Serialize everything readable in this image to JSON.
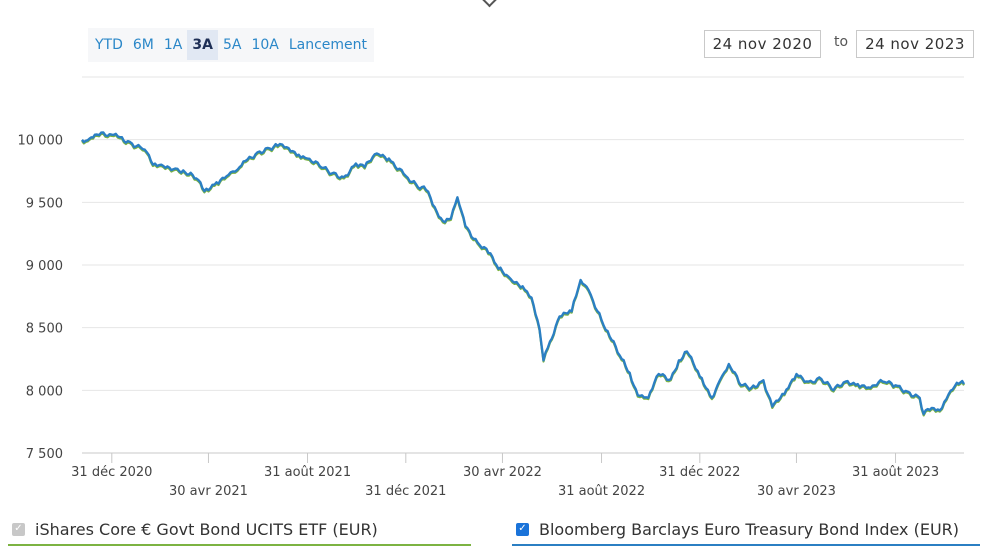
{
  "range_selector": {
    "buttons": [
      {
        "label": "YTD",
        "active": false
      },
      {
        "label": "6M",
        "active": false
      },
      {
        "label": "1A",
        "active": false
      },
      {
        "label": "3A",
        "active": true
      },
      {
        "label": "5A",
        "active": false
      },
      {
        "label": "10A",
        "active": false
      },
      {
        "label": "Lancement",
        "active": false
      }
    ]
  },
  "date_range": {
    "from": "24 nov 2020",
    "separator": "to",
    "to": "24 nov 2023"
  },
  "legend": {
    "items": [
      {
        "label": "iShares Core € Govt Bond UCITS ETF (EUR)",
        "checked": false,
        "color": "#7cb342"
      },
      {
        "label": "Bloomberg Barclays Euro Treasury Bond Index (EUR)",
        "checked": true,
        "color": "#2b7fc3"
      }
    ]
  },
  "chart_data": {
    "type": "line",
    "title": "",
    "xlabel": "",
    "ylabel": "",
    "ylim": [
      7500,
      10500
    ],
    "y_ticks": [
      {
        "value": 7500,
        "label": "7 500"
      },
      {
        "value": 8000,
        "label": "8 000"
      },
      {
        "value": 8500,
        "label": "8 500"
      },
      {
        "value": 9000,
        "label": "9 000"
      },
      {
        "value": 9500,
        "label": "9 500"
      },
      {
        "value": 10000,
        "label": "10 000"
      }
    ],
    "x_range": [
      "2020-11-24",
      "2023-11-24"
    ],
    "x_ticks": [
      {
        "date": "2020-12-31",
        "label": "31 déc 2020"
      },
      {
        "date": "2021-04-30",
        "label": "30 avr 2021"
      },
      {
        "date": "2021-08-31",
        "label": "31 août 2021"
      },
      {
        "date": "2021-12-31",
        "label": "31 déc 2021"
      },
      {
        "date": "2022-04-30",
        "label": "30 avr 2022"
      },
      {
        "date": "2022-08-31",
        "label": "31 août 2022"
      },
      {
        "date": "2022-12-31",
        "label": "31 déc 2022"
      },
      {
        "date": "2023-04-30",
        "label": "30 avr 2023"
      },
      {
        "date": "2023-08-31",
        "label": "31 août 2023"
      }
    ],
    "grid": true,
    "legend_position": "bottom",
    "series": [
      {
        "name": "iShares Core € Govt Bond UCITS ETF (EUR)",
        "color": "#7cb342",
        "points": [
          [
            "2020-11-24",
            9990
          ],
          [
            "2020-12-01",
            9985
          ],
          [
            "2020-12-10",
            10030
          ],
          [
            "2020-12-31",
            10030
          ],
          [
            "2021-01-10",
            10010
          ],
          [
            "2021-01-25",
            9960
          ],
          [
            "2021-02-10",
            9910
          ],
          [
            "2021-02-20",
            9790
          ],
          [
            "2021-03-05",
            9780
          ],
          [
            "2021-03-20",
            9760
          ],
          [
            "2021-04-01",
            9730
          ],
          [
            "2021-04-15",
            9680
          ],
          [
            "2021-04-25",
            9580
          ],
          [
            "2021-05-10",
            9650
          ],
          [
            "2021-05-25",
            9710
          ],
          [
            "2021-06-05",
            9750
          ],
          [
            "2021-06-15",
            9820
          ],
          [
            "2021-06-30",
            9890
          ],
          [
            "2021-07-15",
            9920
          ],
          [
            "2021-07-25",
            9940
          ],
          [
            "2021-08-05",
            9930
          ],
          [
            "2021-08-20",
            9870
          ],
          [
            "2021-08-31",
            9840
          ],
          [
            "2021-09-15",
            9780
          ],
          [
            "2021-09-30",
            9720
          ],
          [
            "2021-10-15",
            9690
          ],
          [
            "2021-10-30",
            9800
          ],
          [
            "2021-11-10",
            9770
          ],
          [
            "2021-11-25",
            9880
          ],
          [
            "2021-12-10",
            9840
          ],
          [
            "2021-12-31",
            9700
          ],
          [
            "2022-01-15",
            9610
          ],
          [
            "2022-01-25",
            9590
          ],
          [
            "2022-02-05",
            9450
          ],
          [
            "2022-02-15",
            9340
          ],
          [
            "2022-02-25",
            9360
          ],
          [
            "2022-03-05",
            9530
          ],
          [
            "2022-03-15",
            9300
          ],
          [
            "2022-03-30",
            9170
          ],
          [
            "2022-04-10",
            9120
          ],
          [
            "2022-04-25",
            8960
          ],
          [
            "2022-05-10",
            8880
          ],
          [
            "2022-05-25",
            8820
          ],
          [
            "2022-06-05",
            8730
          ],
          [
            "2022-06-15",
            8480
          ],
          [
            "2022-06-20",
            8230
          ],
          [
            "2022-06-28",
            8380
          ],
          [
            "2022-07-10",
            8580
          ],
          [
            "2022-07-25",
            8620
          ],
          [
            "2022-08-05",
            8870
          ],
          [
            "2022-08-15",
            8790
          ],
          [
            "2022-08-31",
            8550
          ],
          [
            "2022-09-10",
            8420
          ],
          [
            "2022-09-25",
            8240
          ],
          [
            "2022-10-05",
            8130
          ],
          [
            "2022-10-15",
            7950
          ],
          [
            "2022-10-28",
            7930
          ],
          [
            "2022-11-10",
            8120
          ],
          [
            "2022-11-25",
            8080
          ],
          [
            "2022-12-05",
            8230
          ],
          [
            "2022-12-15",
            8300
          ],
          [
            "2022-12-31",
            8100
          ],
          [
            "2023-01-15",
            7930
          ],
          [
            "2023-01-25",
            8070
          ],
          [
            "2023-02-05",
            8200
          ],
          [
            "2023-02-20",
            8030
          ],
          [
            "2023-03-05",
            8010
          ],
          [
            "2023-03-20",
            8070
          ],
          [
            "2023-03-31",
            7860
          ],
          [
            "2023-04-15",
            7960
          ],
          [
            "2023-04-30",
            8120
          ],
          [
            "2023-05-15",
            8060
          ],
          [
            "2023-05-31",
            8080
          ],
          [
            "2023-06-15",
            7990
          ],
          [
            "2023-06-30",
            8060
          ],
          [
            "2023-07-15",
            8040
          ],
          [
            "2023-07-31",
            8010
          ],
          [
            "2023-08-15",
            8060
          ],
          [
            "2023-08-31",
            8030
          ],
          [
            "2023-09-15",
            7980
          ],
          [
            "2023-09-30",
            7930
          ],
          [
            "2023-10-05",
            7800
          ],
          [
            "2023-10-15",
            7850
          ],
          [
            "2023-10-25",
            7830
          ],
          [
            "2023-11-05",
            7960
          ],
          [
            "2023-11-15",
            8050
          ],
          [
            "2023-11-24",
            8040
          ]
        ]
      },
      {
        "name": "Bloomberg Barclays Euro Treasury Bond Index (EUR)",
        "color": "#2b7fc3",
        "points": [
          [
            "2020-11-24",
            10000
          ],
          [
            "2020-12-01",
            9995
          ],
          [
            "2020-12-10",
            10040
          ],
          [
            "2020-12-31",
            10040
          ],
          [
            "2021-01-10",
            10020
          ],
          [
            "2021-01-25",
            9970
          ],
          [
            "2021-02-10",
            9920
          ],
          [
            "2021-02-20",
            9800
          ],
          [
            "2021-03-05",
            9790
          ],
          [
            "2021-03-20",
            9770
          ],
          [
            "2021-04-01",
            9740
          ],
          [
            "2021-04-15",
            9690
          ],
          [
            "2021-04-25",
            9590
          ],
          [
            "2021-05-10",
            9660
          ],
          [
            "2021-05-25",
            9720
          ],
          [
            "2021-06-05",
            9760
          ],
          [
            "2021-06-15",
            9830
          ],
          [
            "2021-06-30",
            9900
          ],
          [
            "2021-07-15",
            9930
          ],
          [
            "2021-07-25",
            9950
          ],
          [
            "2021-08-05",
            9940
          ],
          [
            "2021-08-20",
            9880
          ],
          [
            "2021-08-31",
            9850
          ],
          [
            "2021-09-15",
            9790
          ],
          [
            "2021-09-30",
            9730
          ],
          [
            "2021-10-15",
            9700
          ],
          [
            "2021-10-30",
            9810
          ],
          [
            "2021-11-10",
            9780
          ],
          [
            "2021-11-25",
            9890
          ],
          [
            "2021-12-10",
            9850
          ],
          [
            "2021-12-31",
            9710
          ],
          [
            "2022-01-15",
            9620
          ],
          [
            "2022-01-25",
            9600
          ],
          [
            "2022-02-05",
            9460
          ],
          [
            "2022-02-15",
            9350
          ],
          [
            "2022-02-25",
            9370
          ],
          [
            "2022-03-05",
            9540
          ],
          [
            "2022-03-15",
            9310
          ],
          [
            "2022-03-30",
            9180
          ],
          [
            "2022-04-10",
            9130
          ],
          [
            "2022-04-25",
            8970
          ],
          [
            "2022-05-10",
            8890
          ],
          [
            "2022-05-25",
            8830
          ],
          [
            "2022-06-05",
            8740
          ],
          [
            "2022-06-15",
            8490
          ],
          [
            "2022-06-20",
            8240
          ],
          [
            "2022-06-28",
            8390
          ],
          [
            "2022-07-10",
            8590
          ],
          [
            "2022-07-25",
            8630
          ],
          [
            "2022-08-05",
            8880
          ],
          [
            "2022-08-15",
            8800
          ],
          [
            "2022-08-31",
            8560
          ],
          [
            "2022-09-10",
            8430
          ],
          [
            "2022-09-25",
            8250
          ],
          [
            "2022-10-05",
            8140
          ],
          [
            "2022-10-15",
            7960
          ],
          [
            "2022-10-28",
            7940
          ],
          [
            "2022-11-10",
            8130
          ],
          [
            "2022-11-25",
            8090
          ],
          [
            "2022-12-05",
            8240
          ],
          [
            "2022-12-15",
            8310
          ],
          [
            "2022-12-31",
            8110
          ],
          [
            "2023-01-15",
            7940
          ],
          [
            "2023-01-25",
            8080
          ],
          [
            "2023-02-05",
            8210
          ],
          [
            "2023-02-20",
            8040
          ],
          [
            "2023-03-05",
            8020
          ],
          [
            "2023-03-20",
            8080
          ],
          [
            "2023-03-31",
            7870
          ],
          [
            "2023-04-15",
            7970
          ],
          [
            "2023-04-30",
            8130
          ],
          [
            "2023-05-15",
            8070
          ],
          [
            "2023-05-31",
            8090
          ],
          [
            "2023-06-15",
            8000
          ],
          [
            "2023-06-30",
            8070
          ],
          [
            "2023-07-15",
            8050
          ],
          [
            "2023-07-31",
            8020
          ],
          [
            "2023-08-15",
            8070
          ],
          [
            "2023-08-31",
            8040
          ],
          [
            "2023-09-15",
            7990
          ],
          [
            "2023-09-30",
            7940
          ],
          [
            "2023-10-05",
            7810
          ],
          [
            "2023-10-15",
            7860
          ],
          [
            "2023-10-25",
            7840
          ],
          [
            "2023-11-05",
            7970
          ],
          [
            "2023-11-15",
            8060
          ],
          [
            "2023-11-24",
            8050
          ]
        ]
      }
    ]
  }
}
